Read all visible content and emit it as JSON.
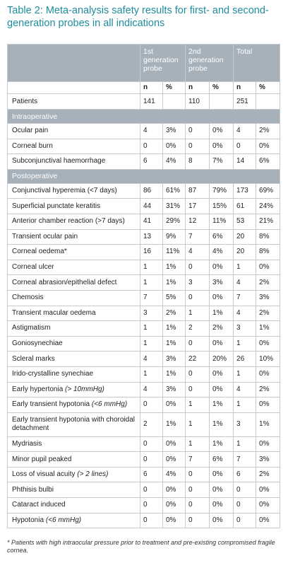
{
  "title": "Table 2: Meta-analysis safety results for first- and second-generation probes in all indications",
  "table": {
    "column_groups": [
      "1st generation probe",
      "2nd generation probe",
      "Total"
    ],
    "subheader": [
      "n",
      "%"
    ],
    "rows": [
      {
        "label": "Patients",
        "cells": [
          "141",
          null,
          "110",
          null,
          "251",
          null
        ]
      },
      {
        "section": "Intraoperative"
      },
      {
        "label": "Ocular pain",
        "cells": [
          "4",
          "3%",
          "0",
          "0%",
          "4",
          "2%"
        ]
      },
      {
        "label": "Corneal burn",
        "cells": [
          "0",
          "0%",
          "0",
          "0%",
          "0",
          "0%"
        ]
      },
      {
        "label": "Subconjunctival haemorrhage",
        "cells": [
          "6",
          "4%",
          "8",
          "7%",
          "14",
          "6%"
        ]
      },
      {
        "section": "Postoperative"
      },
      {
        "label": "Conjunctival hyperemia (<7 days)",
        "cells": [
          "86",
          "61%",
          "87",
          "79%",
          "173",
          "69%"
        ]
      },
      {
        "label": "Superficial punctate keratitis",
        "cells": [
          "44",
          "31%",
          "17",
          "15%",
          "61",
          "24%"
        ]
      },
      {
        "label": "Anterior chamber reaction (>7 days)",
        "cells": [
          "41",
          "29%",
          "12",
          "11%",
          "53",
          "21%"
        ]
      },
      {
        "label": "Transient ocular pain",
        "cells": [
          "13",
          "9%",
          "7",
          "6%",
          "20",
          "8%"
        ]
      },
      {
        "label": "Corneal oedema*",
        "cells": [
          "16",
          "11%",
          "4",
          "4%",
          "20",
          "8%"
        ]
      },
      {
        "label": "Corneal ulcer",
        "cells": [
          "1",
          "1%",
          "0",
          "0%",
          "1",
          "0%"
        ]
      },
      {
        "label": "Corneal abrasion/epithelial defect",
        "cells": [
          "1",
          "1%",
          "3",
          "3%",
          "4",
          "2%"
        ]
      },
      {
        "label": "Chemosis",
        "cells": [
          "7",
          "5%",
          "0",
          "0%",
          "7",
          "3%"
        ]
      },
      {
        "label": "Transient macular oedema",
        "cells": [
          "3",
          "2%",
          "1",
          "1%",
          "4",
          "2%"
        ]
      },
      {
        "label": "Astigmatism",
        "cells": [
          "1",
          "1%",
          "2",
          "2%",
          "3",
          "1%"
        ]
      },
      {
        "label": "Goniosynechiae",
        "cells": [
          "1",
          "1%",
          "0",
          "0%",
          "1",
          "0%"
        ]
      },
      {
        "label": "Scleral marks",
        "cells": [
          "4",
          "3%",
          "22",
          "20%",
          "26",
          "10%"
        ]
      },
      {
        "label": "Irido-crystalline synechiae",
        "cells": [
          "1",
          "1%",
          "0",
          "0%",
          "1",
          "0%"
        ]
      },
      {
        "label": "Early hypertonia",
        "qualifier": "(> 10mmHg)",
        "cells": [
          "4",
          "3%",
          "0",
          "0%",
          "4",
          "2%"
        ]
      },
      {
        "label": "Early transient hypotonia",
        "qualifier": "(<6 mmHg)",
        "cells": [
          "0",
          "0%",
          "1",
          "1%",
          "1",
          "0%"
        ]
      },
      {
        "label": "Early transient hypotonia with choroidal detachment",
        "cells": [
          "2",
          "1%",
          "1",
          "1%",
          "3",
          "1%"
        ]
      },
      {
        "label": "Mydriasis",
        "cells": [
          "0",
          "0%",
          "1",
          "1%",
          "1",
          "0%"
        ]
      },
      {
        "label": "Minor pupil peaked",
        "cells": [
          "0",
          "0%",
          "7",
          "6%",
          "7",
          "3%"
        ]
      },
      {
        "label": "Loss of visual acuity",
        "qualifier": "(> 2 lines)",
        "cells": [
          "6",
          "4%",
          "0",
          "0%",
          "6",
          "2%"
        ]
      },
      {
        "label": "Phthisis bulbi",
        "cells": [
          "0",
          "0%",
          "0",
          "0%",
          "0",
          "0%"
        ]
      },
      {
        "label": "Cataract induced",
        "cells": [
          "0",
          "0%",
          "0",
          "0%",
          "0",
          "0%"
        ]
      },
      {
        "label": "Hypotonia",
        "qualifier": "(<6 mmHg)",
        "cells": [
          "0",
          "0%",
          "0",
          "0%",
          "0",
          "0%"
        ]
      }
    ]
  },
  "footnote": "* Patients with high intraocular pressure prior to treatment and pre-existing compromised fragile cornea."
}
